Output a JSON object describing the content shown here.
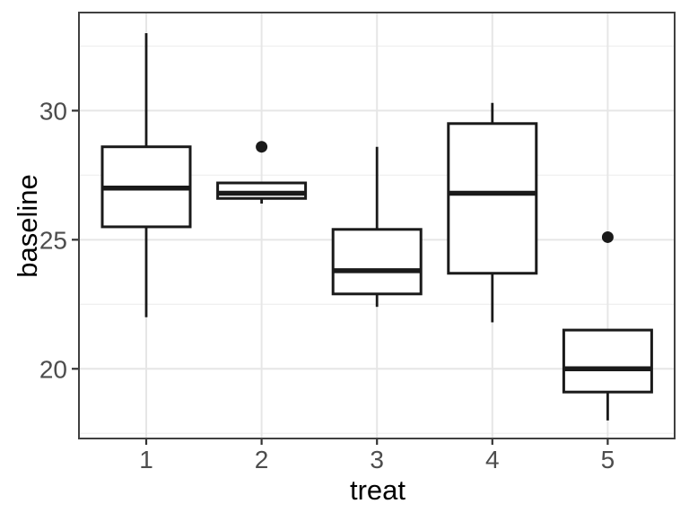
{
  "chart_data": {
    "type": "boxplot",
    "title": "",
    "xlabel": "treat",
    "ylabel": "baseline",
    "categories": [
      "1",
      "2",
      "3",
      "4",
      "5"
    ],
    "ylim": [
      17.3,
      33.8
    ],
    "y_major_ticks": [
      20,
      25,
      30
    ],
    "y_minor_ticks": [
      17.5,
      22.5,
      27.5,
      32.5
    ],
    "grid": "on",
    "legend": "none",
    "series": [
      {
        "category": "1",
        "whisker_low": 22.0,
        "q1": 25.5,
        "median": 27.0,
        "q3": 28.6,
        "whisker_high": 33.0,
        "outliers": []
      },
      {
        "category": "2",
        "whisker_low": 26.4,
        "q1": 26.6,
        "median": 26.8,
        "q3": 27.2,
        "whisker_high": 27.2,
        "outliers": [
          28.6
        ]
      },
      {
        "category": "3",
        "whisker_low": 22.4,
        "q1": 22.9,
        "median": 23.8,
        "q3": 25.4,
        "whisker_high": 28.6,
        "outliers": []
      },
      {
        "category": "4",
        "whisker_low": 21.8,
        "q1": 23.7,
        "median": 26.8,
        "q3": 29.5,
        "whisker_high": 30.3,
        "outliers": []
      },
      {
        "category": "5",
        "whisker_low": 18.0,
        "q1": 19.1,
        "median": 20.0,
        "q3": 21.5,
        "whisker_high": 21.5,
        "outliers": [
          25.1
        ]
      }
    ],
    "style": {
      "box_stroke": "#1a1a1a",
      "box_fill": "#ffffff",
      "panel_fill": "#ffffff",
      "panel_border": "#404040",
      "grid_major": "#e6e6e6",
      "grid_minor": "#f0f0f0",
      "tick_color": "#333333",
      "tick_label_color": "#4d4d4d",
      "title_color": "#000000"
    }
  }
}
